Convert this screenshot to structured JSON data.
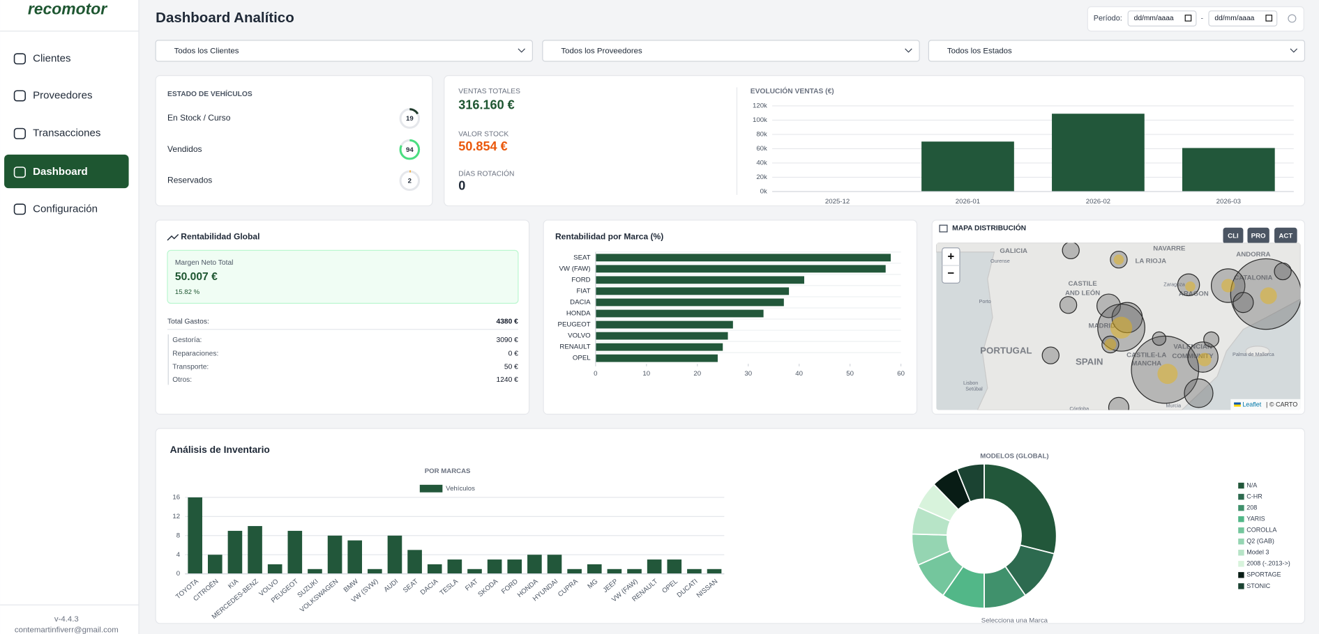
{
  "sidebar": {
    "logo": "recomotor",
    "nav": [
      "Clientes",
      "Proveedores",
      "Transacciones",
      "Dashboard",
      "Configuración"
    ],
    "active": 3,
    "version": "v-4.4.3",
    "email": "contemartinfiverr@gmail.com"
  },
  "header": {
    "title": "Dashboard Analítico",
    "period_label": "Período:",
    "date_from": "dd/mm/aaaa",
    "date_separator": "-",
    "date_to": "dd/mm/aaaa"
  },
  "filters": [
    "Todos los Clientes",
    "Todos los Proveedores",
    "Todos los Estados"
  ],
  "vehicle_status": {
    "title": "ESTADO DE VEHÍCULOS",
    "items": [
      {
        "label": "En Stock / Curso",
        "value": 19,
        "color": "#1f3a2b"
      },
      {
        "label": "Vendidos",
        "value": 94,
        "color": "#4ade80"
      },
      {
        "label": "Reservados",
        "value": 2,
        "color": "#f59e0b"
      }
    ]
  },
  "kpis": [
    {
      "label": "VENTAS TOTALES",
      "value": "316.160 €",
      "color": "#1e5631"
    },
    {
      "label": "VALOR STOCK",
      "value": "50.854 €",
      "color": "#ea580c"
    },
    {
      "label": "DÍAS ROTACIÓN",
      "value": "0",
      "color": "#1f2937"
    }
  ],
  "profit": {
    "title": "Rentabilidad Global",
    "net_label": "Margen Neto Total",
    "net_value": "50.007 €",
    "net_percent": "15.82 %",
    "total_label": "Total Gastos:",
    "total_value": "4380 €",
    "items": [
      {
        "label": "Gestoría:",
        "value": "3090 €"
      },
      {
        "label": "Reparaciones:",
        "value": "0 €"
      },
      {
        "label": "Transporte:",
        "value": "50 €"
      },
      {
        "label": "Otros:",
        "value": "1240 €"
      }
    ]
  },
  "map": {
    "title": "MAPA DISTRIBUCIÓN",
    "buttons": [
      "CLI",
      "PRO",
      "ACT"
    ],
    "zoom_in": "+",
    "zoom_out": "−",
    "labels": [
      "GALICIA",
      "Ourense",
      "NAVARRE",
      "LA RIOJA",
      "ANDORRA",
      "CATALONIA",
      "CASTILE",
      "AND LEÓN",
      "Zaragoza",
      "ARAGON",
      "Porto",
      "MADRID",
      "PORTUGAL",
      "SPAIN",
      "VALENCIAN",
      "COMMUNITY",
      "CASTILE-LA",
      "MANCHA",
      "Palma de Mallorca",
      "Lisbon",
      "Setúbal",
      "Murcia",
      "Córdoba"
    ],
    "attribution_link": "Leaflet",
    "attribution_text": "| © CARTO"
  },
  "inventory": {
    "title": "Análisis de Inventario",
    "footer": "Selecciona una Marca"
  },
  "chart_data": [
    {
      "type": "bar",
      "title": "EVOLUCIÓN VENTAS (€)",
      "categories": [
        "2025-12",
        "2026-01",
        "2026-02",
        "2026-03"
      ],
      "values": [
        0,
        70000,
        109000,
        61000
      ],
      "color": "#22573a",
      "ylim": [
        0,
        120000
      ],
      "yticks": [
        {
          "value": 0,
          "label": "0k"
        },
        {
          "value": 20000,
          "label": "20k"
        },
        {
          "value": 40000,
          "label": "40k"
        },
        {
          "value": 60000,
          "label": "60k"
        },
        {
          "value": 80000,
          "label": "80k"
        },
        {
          "value": 100000,
          "label": "100k"
        },
        {
          "value": 120000,
          "label": "120k"
        }
      ],
      "grid": true
    },
    {
      "type": "hbar",
      "title": "Rentabilidad por Marca (%)",
      "categories": [
        "SEAT",
        "VW (FAW)",
        "FORD",
        "FIAT",
        "DACIA",
        "HONDA",
        "PEUGEOT",
        "VOLVO",
        "RENAULT",
        "OPEL"
      ],
      "values": [
        58,
        57,
        41,
        38,
        37,
        33,
        27,
        26,
        25,
        24
      ],
      "color": "#22573a",
      "xlim": [
        0,
        60
      ],
      "xticks": [
        0,
        10,
        20,
        30,
        40,
        50,
        60
      ]
    },
    {
      "type": "bar",
      "title": "POR MARCAS",
      "categories": [
        "TOYOTA",
        "CITROËN",
        "KIA",
        "MERCEDES-BENZ",
        "VOLVO",
        "PEUGEOT",
        "SUZUKI",
        "VOLKSWAGEN",
        "BMW",
        "VW (SVW)",
        "AUDI",
        "SEAT",
        "DACIA",
        "TESLA",
        "FIAT",
        "SKODA",
        "FORD",
        "HONDA",
        "HYUNDAI",
        "CUPRA",
        "MG",
        "JEEP",
        "VW (FAW)",
        "RENAULT",
        "OPEL",
        "DUCATI",
        "NISSAN"
      ],
      "series": [
        {
          "name": "Vehículos",
          "color": "#22573a",
          "values": [
            16,
            4,
            9,
            10,
            2,
            9,
            1,
            8,
            7,
            1,
            8,
            5,
            2,
            3,
            1,
            3,
            3,
            4,
            4,
            1,
            2,
            1,
            1,
            3,
            3,
            1,
            1
          ]
        }
      ],
      "ylim": [
        0,
        16
      ],
      "yticks": [
        0,
        4,
        8,
        12,
        16
      ],
      "grid": true,
      "legend": "top"
    },
    {
      "type": "pie",
      "donut": true,
      "title": "MODELOS (GLOBAL)",
      "categories": [
        "N/A",
        "C-HR",
        "208",
        "YARIS",
        "COROLLA",
        "Q2 (GAB)",
        "Model 3",
        "2008 (-.2013->)",
        "SPORTAGE",
        "STONIC"
      ],
      "values": [
        33,
        13,
        11,
        11,
        10,
        8,
        7,
        7,
        7,
        7
      ],
      "colors": [
        "#22573a",
        "#2d6a4f",
        "#40916c",
        "#52b788",
        "#74c69d",
        "#95d5b2",
        "#b7e4c7",
        "#d8f3dc",
        "#081c15",
        "#1b4332"
      ],
      "legend": "right"
    }
  ]
}
